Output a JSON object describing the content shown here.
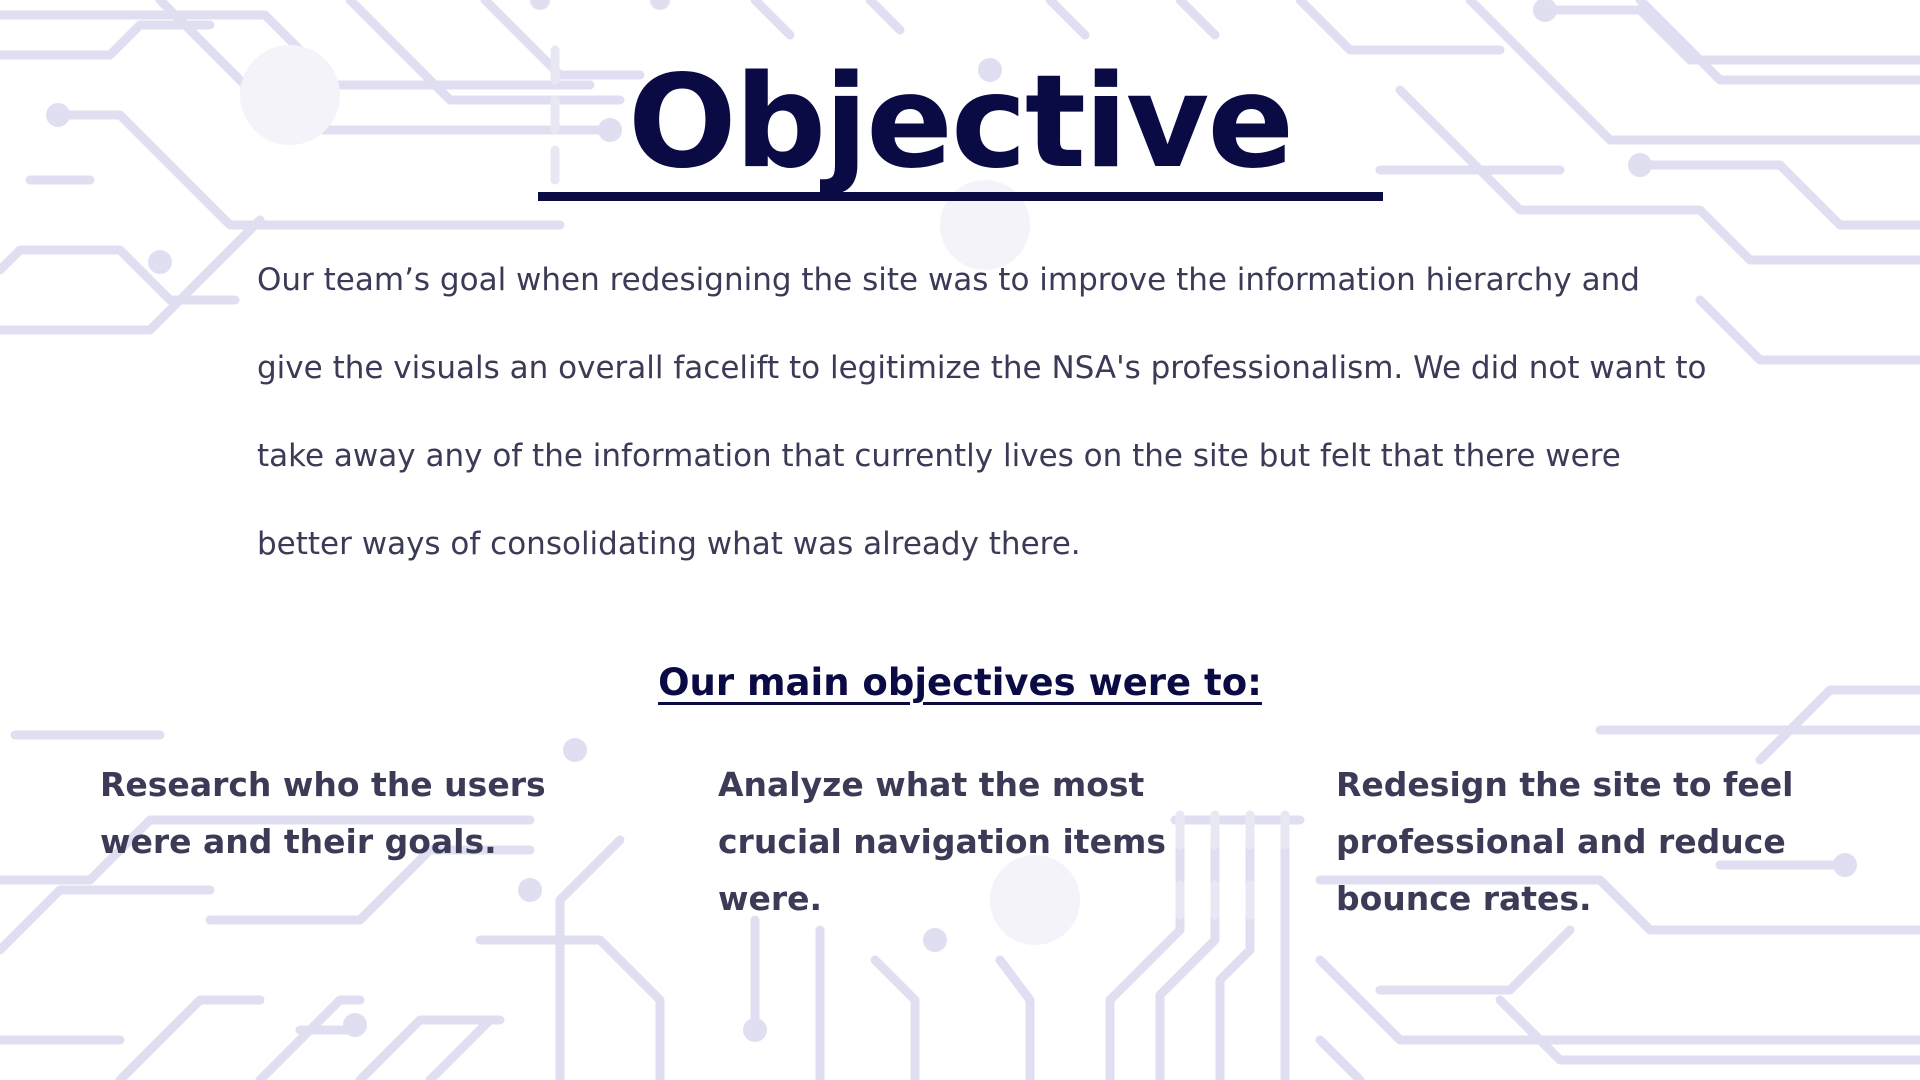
{
  "slide": {
    "title": "Objective",
    "body": "Our team’s goal when redesigning the site was to improve the information hierarchy and give the visuals an overall facelift to legitimize the NSA's professionalism. We did not want to take away any of the information that currently lives on the site but felt that there were better ways of consolidating what was already there.",
    "subheading": "Our main objectives were to:",
    "objectives": [
      "Research who the users were and their goals.",
      "Analyze what the most crucial navigation items were.",
      "Redesign the site to feel professional and reduce bounce rates."
    ]
  },
  "colors": {
    "title": "#0a0a45",
    "text": "#3b3b57",
    "circuit": "#dcdcf0",
    "background": "#ffffff"
  },
  "background": "circuit-board-pattern"
}
